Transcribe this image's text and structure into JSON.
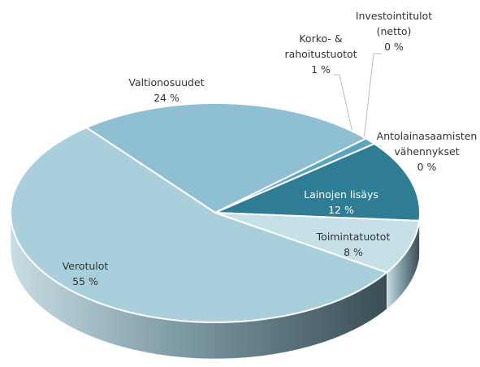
{
  "chart_data": {
    "type": "pie",
    "categories": [
      "Valtionosuudet",
      "Korko- & rahoitustuotot",
      "Investointitulot (netto)",
      "Antolainasaamisten vähennykset",
      "Lainojen lisäys",
      "Toimintatuotot",
      "Verotulot"
    ],
    "values": [
      24,
      1,
      0,
      0,
      12,
      8,
      55
    ],
    "value_labels": [
      "24 %",
      "1 %",
      "0 %",
      "0 %",
      "12 %",
      "8 %",
      "55 %"
    ],
    "colors": [
      "#8fbfd2",
      "#5aa5c0",
      "#3f8fab",
      "#2d7f98",
      "#2f7d94",
      "#c6e0e8",
      "#a9cfdc"
    ]
  }
}
